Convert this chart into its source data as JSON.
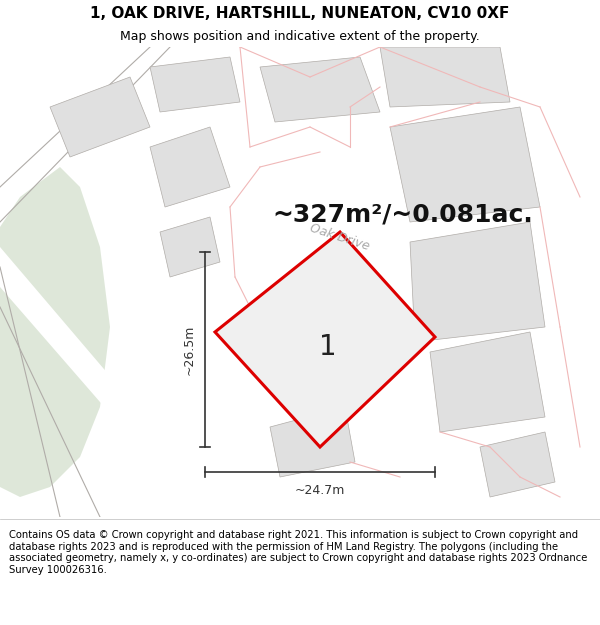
{
  "title": "1, OAK DRIVE, HARTSHILL, NUNEATON, CV10 0XF",
  "subtitle": "Map shows position and indicative extent of the property.",
  "area_text": "~327m²/~0.081ac.",
  "label_number": "1",
  "dim_vertical": "~26.5m",
  "dim_horizontal": "~24.7m",
  "road_label": "Oak Drive",
  "copyright_text": "Contains OS data © Crown copyright and database right 2021. This information is subject to Crown copyright and database rights 2023 and is reproduced with the permission of HM Land Registry. The polygons (including the associated geometry, namely x, y co-ordinates) are subject to Crown copyright and database rights 2023 Ordnance Survey 100026316.",
  "map_bg": "#ffffff",
  "plot_fill": "#f0f0f0",
  "plot_edge": "#dd0000",
  "road_line_color": "#f0b8b8",
  "gray_line_color": "#b0aca8",
  "building_fill": "#e0e0e0",
  "green_fill": "#c8d8c0",
  "dim_line_color": "#333333",
  "title_fontsize": 11,
  "subtitle_fontsize": 9,
  "area_fontsize": 18,
  "label_fontsize": 20,
  "road_label_fontsize": 9,
  "copyright_fontsize": 7.2
}
